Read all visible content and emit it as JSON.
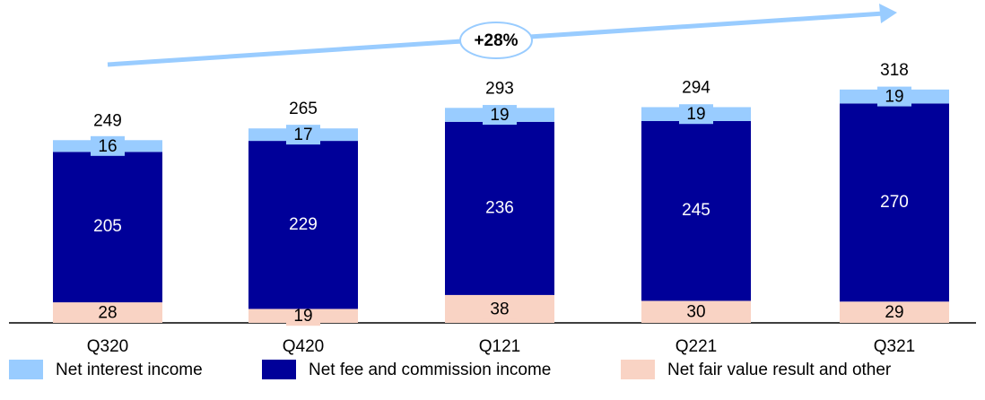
{
  "chart_data": {
    "type": "stacked_bar",
    "annotation": "+28%",
    "categories": [
      "Q320",
      "Q420",
      "Q121",
      "Q221",
      "Q321"
    ],
    "series": [
      {
        "name": "Net fair value result and other",
        "color": "#f9d3c4",
        "values": [
          28,
          19,
          38,
          30,
          29
        ]
      },
      {
        "name": "Net fee and commission income",
        "color": "#000099",
        "values": [
          205,
          229,
          236,
          245,
          270
        ]
      },
      {
        "name": "Net interest income",
        "color": "#99ccff",
        "values": [
          16,
          17,
          19,
          19,
          19
        ]
      }
    ],
    "totals": [
      249,
      265,
      293,
      294,
      318
    ],
    "ylim": [
      0,
      440
    ]
  }
}
